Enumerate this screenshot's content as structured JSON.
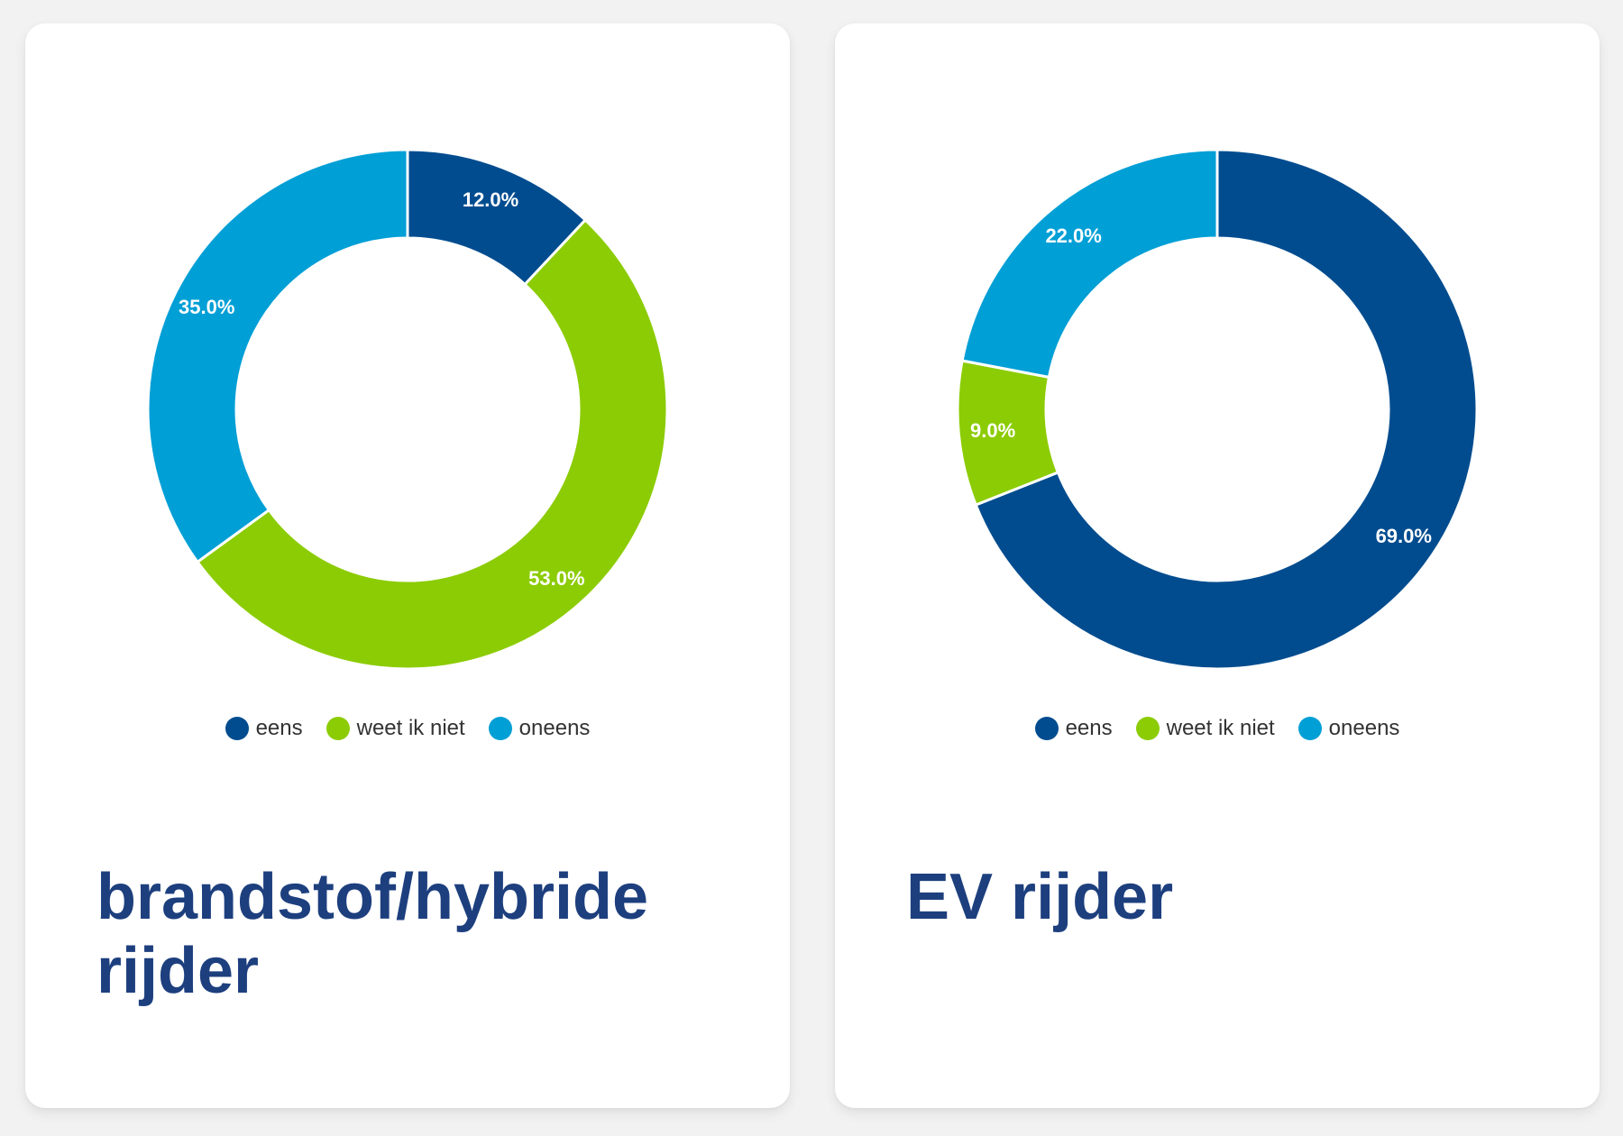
{
  "colors": {
    "eens": "#004c8f",
    "weet_ik_niet": "#8ccc05",
    "oneens": "#009fd6",
    "title": "#1d3f7e"
  },
  "chart_data": [
    {
      "type": "pie",
      "title": "brandstof/hybride rijder",
      "categories": [
        "eens",
        "weet ik niet",
        "oneens"
      ],
      "values": [
        12.0,
        53.0,
        35.0
      ],
      "labels": [
        "12.0%",
        "53.0%",
        "35.0%"
      ],
      "colors": [
        "#004c8f",
        "#8ccc05",
        "#009fd6"
      ],
      "legend": "bottom",
      "donut": true
    },
    {
      "type": "pie",
      "title": "EV rijder",
      "categories": [
        "eens",
        "weet ik niet",
        "oneens"
      ],
      "values": [
        69.0,
        9.0,
        22.0
      ],
      "labels": [
        "69.0%",
        "9.0%",
        "22.0%"
      ],
      "colors": [
        "#004c8f",
        "#8ccc05",
        "#009fd6"
      ],
      "legend": "bottom",
      "donut": true
    }
  ]
}
